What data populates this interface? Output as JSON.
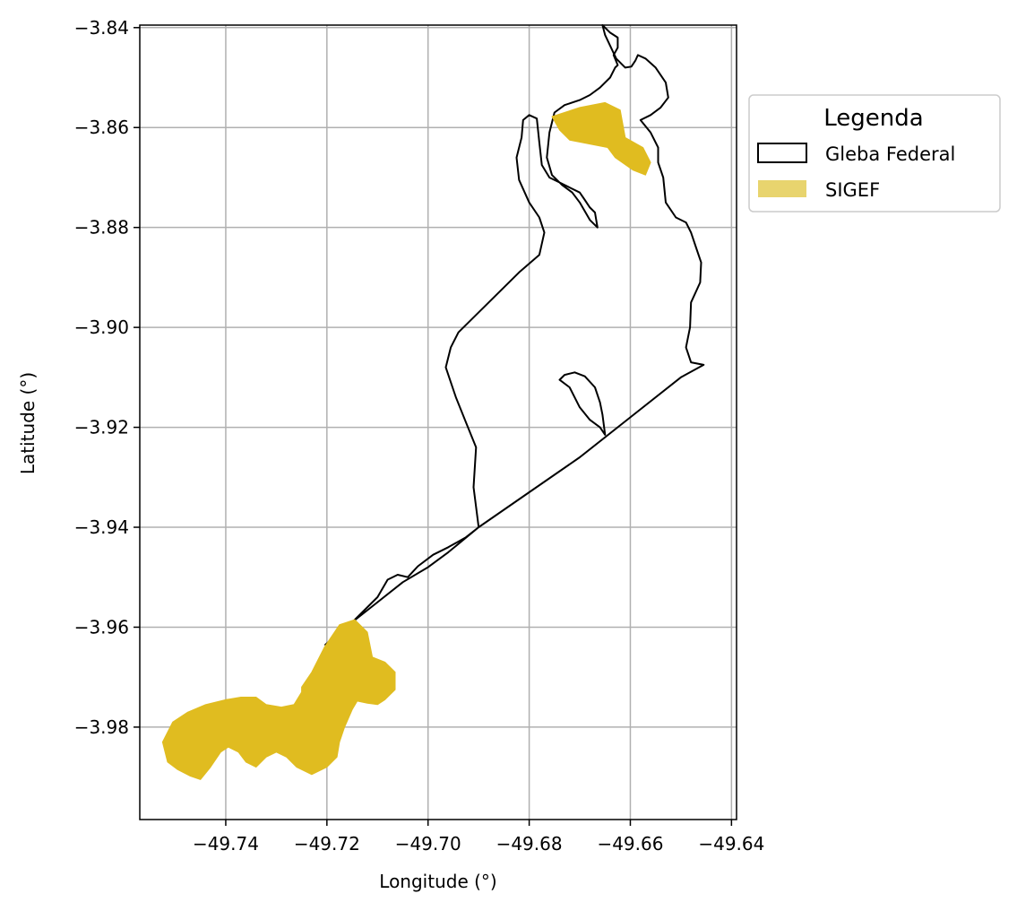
{
  "chart_data": {
    "type": "map",
    "xlabel": "Longitude (°)",
    "ylabel": "Latitude (°)",
    "xlim": [
      -49.757,
      -49.639
    ],
    "ylim": [
      -3.9985,
      -3.8395
    ],
    "grid": true,
    "xticks": [
      -49.74,
      -49.72,
      -49.7,
      -49.68,
      -49.66,
      -49.64
    ],
    "yticks": [
      -3.84,
      -3.86,
      -3.88,
      -3.9,
      -3.92,
      -3.94,
      -3.96,
      -3.98
    ],
    "xtick_labels": [
      "−49.74",
      "−49.72",
      "−49.70",
      "−49.68",
      "−49.66",
      "−49.64"
    ],
    "ytick_labels": [
      "−3.84",
      "−3.86",
      "−3.88",
      "−3.90",
      "−3.92",
      "−3.94",
      "−3.96",
      "−3.98"
    ],
    "legend": {
      "title": "Legenda",
      "placement": "outside-upper-right",
      "entries": [
        {
          "label": "Gleba Federal",
          "style": "outline",
          "color": "#000000"
        },
        {
          "label": "SIGEF",
          "style": "fill",
          "color": "#e8d46e"
        }
      ]
    },
    "layers": [
      {
        "name": "Gleba Federal",
        "style": "outline",
        "stroke": "#000000",
        "polygons": [
          [
            [
              -49.7203,
              -3.9635
            ],
            [
              -49.718,
              -3.9618
            ],
            [
              -49.715,
              -3.959
            ],
            [
              -49.71,
              -3.954
            ],
            [
              -49.708,
              -3.9505
            ],
            [
              -49.706,
              -3.9495
            ],
            [
              -49.704,
              -3.95
            ],
            [
              -49.702,
              -3.9478
            ],
            [
              -49.699,
              -3.9455
            ],
            [
              -49.696,
              -3.944
            ],
            [
              -49.6925,
              -3.942
            ],
            [
              -49.69,
              -3.94
            ],
            [
              -49.691,
              -3.932
            ],
            [
              -49.6905,
              -3.924
            ],
            [
              -49.6925,
              -3.919
            ],
            [
              -49.6945,
              -3.914
            ],
            [
              -49.6965,
              -3.908
            ],
            [
              -49.6955,
              -3.904
            ],
            [
              -49.694,
              -3.901
            ],
            [
              -49.688,
              -3.895
            ],
            [
              -49.682,
              -3.889
            ],
            [
              -49.678,
              -3.8855
            ],
            [
              -49.677,
              -3.881
            ],
            [
              -49.678,
              -3.878
            ],
            [
              -49.68,
              -3.875
            ],
            [
              -49.682,
              -3.8705
            ],
            [
              -49.6825,
              -3.866
            ],
            [
              -49.6815,
              -3.862
            ],
            [
              -49.6812,
              -3.8585
            ],
            [
              -49.68,
              -3.8575
            ],
            [
              -49.6785,
              -3.8582
            ],
            [
              -49.678,
              -3.863
            ],
            [
              -49.6775,
              -3.8675
            ],
            [
              -49.676,
              -3.87
            ],
            [
              -49.674,
              -3.871
            ],
            [
              -49.672,
              -3.872
            ],
            [
              -49.67,
              -3.873
            ],
            [
              -49.669,
              -3.8745
            ],
            [
              -49.668,
              -3.876
            ],
            [
              -49.667,
              -3.877
            ],
            [
              -49.6665,
              -3.88
            ],
            [
              -49.668,
              -3.8785
            ],
            [
              -49.67,
              -3.875
            ],
            [
              -49.6715,
              -3.873
            ],
            [
              -49.6735,
              -3.8715
            ],
            [
              -49.6755,
              -3.8695
            ],
            [
              -49.6765,
              -3.866
            ],
            [
              -49.676,
              -3.861
            ],
            [
              -49.675,
              -3.857
            ],
            [
              -49.673,
              -3.8555
            ],
            [
              -49.67,
              -3.8545
            ],
            [
              -49.668,
              -3.8535
            ],
            [
              -49.666,
              -3.852
            ],
            [
              -49.664,
              -3.85
            ],
            [
              -49.663,
              -3.848
            ],
            [
              -49.6625,
              -3.8475
            ],
            [
              -49.6633,
              -3.8455
            ],
            [
              -49.6625,
              -3.844
            ],
            [
              -49.6625,
              -3.842
            ],
            [
              -49.664,
              -3.841
            ],
            [
              -49.6655,
              -3.8395
            ],
            [
              -49.665,
              -3.8415
            ],
            [
              -49.6628,
              -3.8462
            ],
            [
              -49.661,
              -3.848
            ],
            [
              -49.6598,
              -3.8478
            ],
            [
              -49.659,
              -3.8466
            ],
            [
              -49.6585,
              -3.8455
            ],
            [
              -49.657,
              -3.8462
            ],
            [
              -49.655,
              -3.848
            ],
            [
              -49.653,
              -3.851
            ],
            [
              -49.6525,
              -3.854
            ],
            [
              -49.654,
              -3.856
            ],
            [
              -49.656,
              -3.8575
            ],
            [
              -49.658,
              -3.8585
            ],
            [
              -49.656,
              -3.861
            ],
            [
              -49.6545,
              -3.864
            ],
            [
              -49.6545,
              -3.867
            ],
            [
              -49.6535,
              -3.87
            ],
            [
              -49.653,
              -3.875
            ],
            [
              -49.651,
              -3.878
            ],
            [
              -49.649,
              -3.879
            ],
            [
              -49.648,
              -3.881
            ],
            [
              -49.647,
              -3.884
            ],
            [
              -49.646,
              -3.887
            ],
            [
              -49.6462,
              -3.891
            ],
            [
              -49.648,
              -3.895
            ],
            [
              -49.6482,
              -3.9
            ],
            [
              -49.649,
              -3.904
            ],
            [
              -49.648,
              -3.907
            ],
            [
              -49.6455,
              -3.9075
            ],
            [
              -49.65,
              -3.91
            ],
            [
              -49.66,
              -3.918
            ],
            [
              -49.67,
              -3.926
            ],
            [
              -49.68,
              -3.933
            ],
            [
              -49.69,
              -3.94
            ],
            [
              -49.696,
              -3.945
            ],
            [
              -49.7,
              -3.948
            ],
            [
              -49.705,
              -3.951
            ],
            [
              -49.71,
              -3.955
            ],
            [
              -49.715,
              -3.959
            ],
            [
              -49.7203,
              -3.9635
            ]
          ],
          [
            [
              -49.665,
              -3.9215
            ],
            [
              -49.666,
              -3.92
            ],
            [
              -49.668,
              -3.9185
            ],
            [
              -49.67,
              -3.916
            ],
            [
              -49.672,
              -3.912
            ],
            [
              -49.674,
              -3.9105
            ],
            [
              -49.673,
              -3.9095
            ],
            [
              -49.671,
              -3.909
            ],
            [
              -49.669,
              -3.9098
            ],
            [
              -49.667,
              -3.912
            ],
            [
              -49.666,
              -3.915
            ],
            [
              -49.6655,
              -3.9175
            ],
            [
              -49.665,
              -3.9215
            ]
          ]
        ]
      },
      {
        "name": "SIGEF",
        "style": "fill",
        "fill": "#e0bc20",
        "polygons": [
          [
            [
              -49.6755,
              -3.8578
            ],
            [
              -49.67,
              -3.856
            ],
            [
              -49.665,
              -3.855
            ],
            [
              -49.662,
              -3.8565
            ],
            [
              -49.661,
              -3.862
            ],
            [
              -49.6575,
              -3.864
            ],
            [
              -49.656,
              -3.867
            ],
            [
              -49.657,
              -3.8695
            ],
            [
              -49.6595,
              -3.8685
            ],
            [
              -49.663,
              -3.866
            ],
            [
              -49.6645,
              -3.864
            ],
            [
              -49.667,
              -3.8635
            ],
            [
              -49.672,
              -3.8625
            ],
            [
              -49.674,
              -3.8605
            ],
            [
              -49.6755,
              -3.8578
            ]
          ],
          [
            [
              -49.7205,
              -3.964
            ],
            [
              -49.7175,
              -3.9595
            ],
            [
              -49.7145,
              -3.9585
            ],
            [
              -49.712,
              -3.961
            ],
            [
              -49.711,
              -3.966
            ],
            [
              -49.7085,
              -3.967
            ],
            [
              -49.7065,
              -3.969
            ],
            [
              -49.7065,
              -3.9725
            ],
            [
              -49.7085,
              -3.9745
            ],
            [
              -49.71,
              -3.9755
            ],
            [
              -49.712,
              -3.9752
            ],
            [
              -49.714,
              -3.9748
            ],
            [
              -49.715,
              -3.9765
            ],
            [
              -49.7165,
              -3.98
            ],
            [
              -49.7175,
              -3.983
            ],
            [
              -49.718,
              -3.986
            ],
            [
              -49.72,
              -3.988
            ],
            [
              -49.723,
              -3.9895
            ],
            [
              -49.726,
              -3.988
            ],
            [
              -49.728,
              -3.986
            ],
            [
              -49.73,
              -3.985
            ],
            [
              -49.732,
              -3.986
            ],
            [
              -49.734,
              -3.988
            ],
            [
              -49.736,
              -3.987
            ],
            [
              -49.7375,
              -3.985
            ],
            [
              -49.7395,
              -3.984
            ],
            [
              -49.741,
              -3.985
            ],
            [
              -49.743,
              -3.988
            ],
            [
              -49.745,
              -3.9905
            ],
            [
              -49.747,
              -3.9898
            ],
            [
              -49.7495,
              -3.9885
            ],
            [
              -49.7515,
              -3.987
            ],
            [
              -49.7525,
              -3.983
            ],
            [
              -49.7505,
              -3.979
            ],
            [
              -49.7475,
              -3.977
            ],
            [
              -49.744,
              -3.9755
            ],
            [
              -49.74,
              -3.9745
            ],
            [
              -49.737,
              -3.974
            ],
            [
              -49.734,
              -3.974
            ],
            [
              -49.732,
              -3.9755
            ],
            [
              -49.729,
              -3.976
            ],
            [
              -49.7265,
              -3.9755
            ],
            [
              -49.725,
              -3.973
            ],
            [
              -49.725,
              -3.972
            ],
            [
              -49.723,
              -3.969
            ],
            [
              -49.7215,
              -3.966
            ],
            [
              -49.7205,
              -3.964
            ]
          ]
        ]
      }
    ]
  }
}
